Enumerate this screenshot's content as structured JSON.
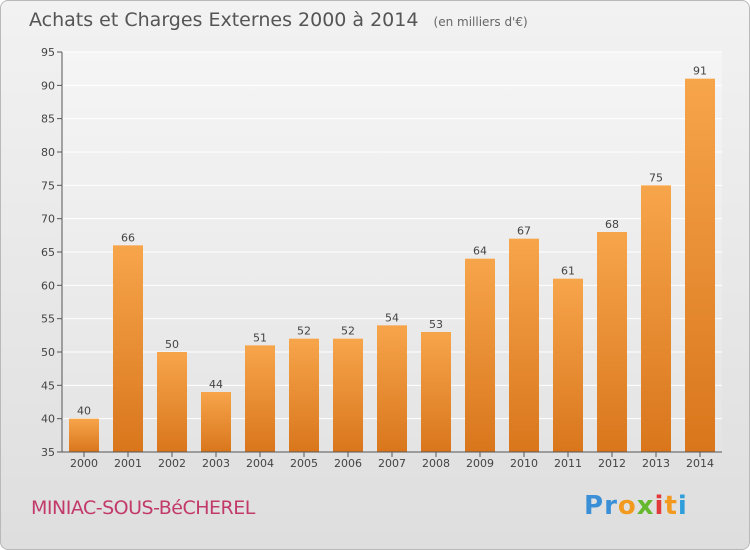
{
  "header": {
    "title": "Achats et Charges Externes 2000 à 2014",
    "unit": "(en milliers d'€)"
  },
  "footer": {
    "commune": "MINIAC-SOUS-BéCHEREL",
    "logo": {
      "letters": [
        "P",
        "r",
        "o",
        "x",
        "i",
        "t",
        "i"
      ],
      "colors": [
        "#3a8fd6",
        "#3a8fd6",
        "#f29a1f",
        "#66b82e",
        "#e23a3a",
        "#f29a1f",
        "#2f9edb"
      ]
    }
  },
  "chart_data": {
    "type": "bar",
    "categories": [
      "2000",
      "2001",
      "2002",
      "2003",
      "2004",
      "2005",
      "2006",
      "2007",
      "2008",
      "2009",
      "2010",
      "2011",
      "2012",
      "2013",
      "2014"
    ],
    "values": [
      40,
      66,
      50,
      44,
      51,
      52,
      52,
      54,
      53,
      64,
      67,
      61,
      68,
      75,
      91
    ],
    "title": "Achats et Charges Externes 2000 à 2014",
    "ylim": [
      35,
      95
    ],
    "yticks": [
      35,
      40,
      45,
      50,
      55,
      60,
      65,
      70,
      75,
      80,
      85,
      90,
      95
    ],
    "grid": true,
    "bar_color": "#f29a3f",
    "data_labels": true
  }
}
